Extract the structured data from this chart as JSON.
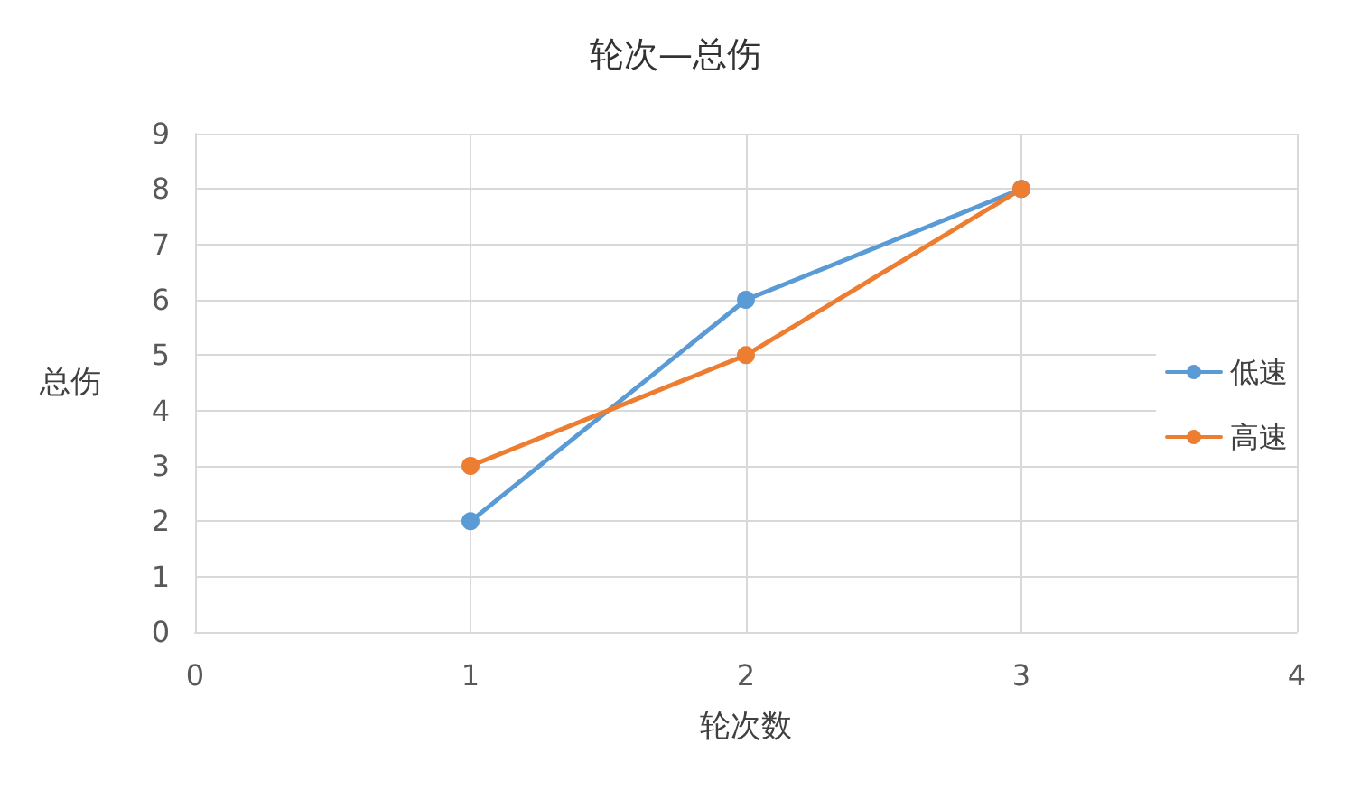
{
  "chart_data": {
    "type": "line",
    "title": "轮次—总伤",
    "xlabel": "轮次数",
    "ylabel": "总伤",
    "x": [
      1,
      2,
      3
    ],
    "series": [
      {
        "name": "低速",
        "color": "#5b9bd5",
        "values": [
          2,
          6,
          8
        ]
      },
      {
        "name": "高速",
        "color": "#ed7d31",
        "values": [
          3,
          5,
          8
        ]
      }
    ],
    "xlim": [
      0,
      4
    ],
    "xticks": [
      0,
      1,
      2,
      3,
      4
    ],
    "ylim": [
      0,
      9
    ],
    "yticks": [
      0,
      1,
      2,
      3,
      4,
      5,
      6,
      7,
      8,
      9
    ],
    "grid": true,
    "legend": "right",
    "marker": "circle",
    "line_style": "solid"
  }
}
